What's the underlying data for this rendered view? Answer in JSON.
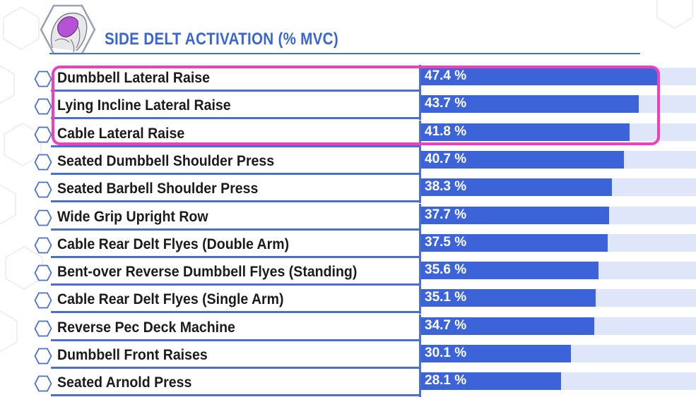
{
  "chart_data": {
    "type": "bar",
    "orientation": "horizontal",
    "title": "SIDE DELT ACTIVATION (% MVC)",
    "categories": [
      "Dumbbell Lateral Raise",
      "Lying Incline Lateral Raise",
      "Cable Lateral Raise",
      "Seated Dumbbell Shoulder Press",
      "Seated Barbell Shoulder Press",
      "Wide Grip Upright Row",
      "Cable Rear Delt Flyes (Double Arm)",
      "Bent-over Reverse Dumbbell Flyes (Standing)",
      "Cable Rear Delt Flyes (Single Arm)",
      "Reverse Pec Deck Machine",
      "Dumbbell Front Raises",
      "Seated Arnold Press"
    ],
    "values": [
      47.4,
      43.7,
      41.8,
      40.7,
      38.3,
      37.7,
      37.5,
      35.6,
      35.1,
      34.7,
      30.1,
      28.1
    ],
    "value_labels": [
      "47.4 %",
      "43.7 %",
      "41.8 %",
      "40.7 %",
      "38.3 %",
      "37.7 %",
      "37.5 %",
      "35.6 %",
      "35.1 %",
      "34.7 %",
      "30.1 %",
      "28.1 %"
    ],
    "highlighted_rows": [
      0,
      1,
      2
    ],
    "grid": false,
    "legend": "none"
  },
  "colors": {
    "title": "#3b66d0",
    "bar": "#3c64d8",
    "track": "#dfe6f9",
    "rule": "#4a6fd1",
    "highlight": "#ee3fbd",
    "label": "#1b1b1b",
    "value_text": "#ffffff"
  },
  "icons": {
    "logo": "shoulder-muscle-hexagon-icon",
    "row_marker": "hexagon-outline-icon"
  }
}
